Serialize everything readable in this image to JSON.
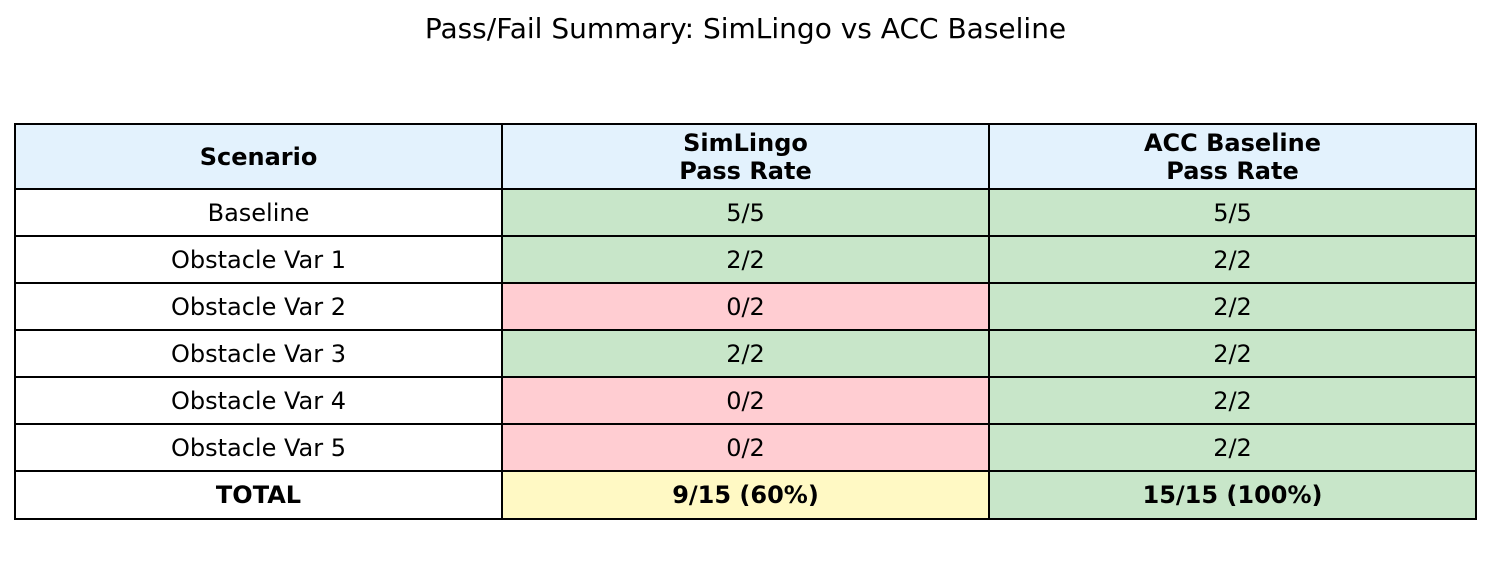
{
  "title": "Pass/Fail Summary: SimLingo vs ACC Baseline",
  "colors": {
    "header_bg": "#e3f2fd",
    "pass_bg": "#c8e6c9",
    "fail_bg": "#ffcdd2",
    "total_bg": "#fff9c4",
    "border": "#000000",
    "text": "#000000",
    "page_bg": "#ffffff"
  },
  "table": {
    "headers": [
      "Scenario",
      "SimLingo\nPass Rate",
      "ACC Baseline\nPass Rate"
    ],
    "rows": [
      {
        "scenario": "Baseline",
        "simlingo": {
          "text": "5/5",
          "status": "pass"
        },
        "acc": {
          "text": "5/5",
          "status": "pass"
        }
      },
      {
        "scenario": "Obstacle Var 1",
        "simlingo": {
          "text": "2/2",
          "status": "pass"
        },
        "acc": {
          "text": "2/2",
          "status": "pass"
        }
      },
      {
        "scenario": "Obstacle Var 2",
        "simlingo": {
          "text": "0/2",
          "status": "fail"
        },
        "acc": {
          "text": "2/2",
          "status": "pass"
        }
      },
      {
        "scenario": "Obstacle Var 3",
        "simlingo": {
          "text": "2/2",
          "status": "pass"
        },
        "acc": {
          "text": "2/2",
          "status": "pass"
        }
      },
      {
        "scenario": "Obstacle Var 4",
        "simlingo": {
          "text": "0/2",
          "status": "fail"
        },
        "acc": {
          "text": "2/2",
          "status": "pass"
        }
      },
      {
        "scenario": "Obstacle Var 5",
        "simlingo": {
          "text": "0/2",
          "status": "fail"
        },
        "acc": {
          "text": "2/2",
          "status": "pass"
        }
      }
    ],
    "total": {
      "scenario": "TOTAL",
      "simlingo": {
        "text": "9/15 (60%)",
        "status": "total"
      },
      "acc": {
        "text": "15/15 (100%)",
        "status": "pass"
      }
    }
  },
  "chart_data": {
    "type": "table",
    "title": "Pass/Fail Summary: SimLingo vs ACC Baseline",
    "columns": [
      "Scenario",
      "SimLingo Pass Rate",
      "ACC Baseline Pass Rate"
    ],
    "rows": [
      {
        "scenario": "Baseline",
        "simlingo_pass": 5,
        "simlingo_total": 5,
        "acc_pass": 5,
        "acc_total": 5
      },
      {
        "scenario": "Obstacle Var 1",
        "simlingo_pass": 2,
        "simlingo_total": 2,
        "acc_pass": 2,
        "acc_total": 2
      },
      {
        "scenario": "Obstacle Var 2",
        "simlingo_pass": 0,
        "simlingo_total": 2,
        "acc_pass": 2,
        "acc_total": 2
      },
      {
        "scenario": "Obstacle Var 3",
        "simlingo_pass": 2,
        "simlingo_total": 2,
        "acc_pass": 2,
        "acc_total": 2
      },
      {
        "scenario": "Obstacle Var 4",
        "simlingo_pass": 0,
        "simlingo_total": 2,
        "acc_pass": 2,
        "acc_total": 2
      },
      {
        "scenario": "Obstacle Var 5",
        "simlingo_pass": 0,
        "simlingo_total": 2,
        "acc_pass": 2,
        "acc_total": 2
      }
    ],
    "totals": {
      "simlingo": {
        "pass": 9,
        "total": 15,
        "pct": 60,
        "label": "9/15 (60%)"
      },
      "acc": {
        "pass": 15,
        "total": 15,
        "pct": 100,
        "label": "15/15 (100%)"
      }
    },
    "legend_semantics": {
      "green": "pass",
      "pink": "fail",
      "yellow": "total-highlight"
    }
  }
}
